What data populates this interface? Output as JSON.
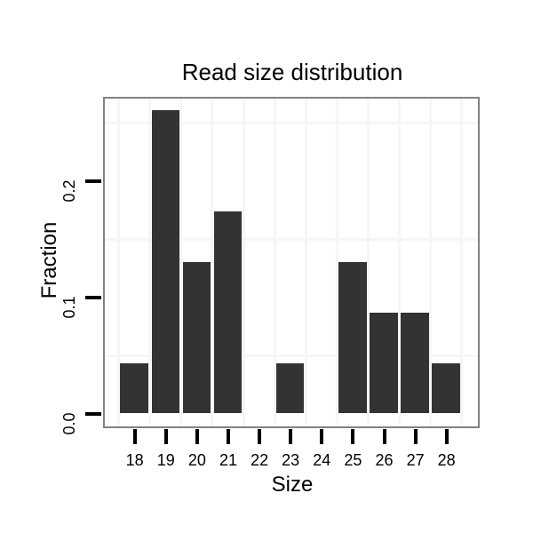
{
  "chart_data": {
    "type": "bar",
    "title": "Read size distribution",
    "xlabel": "Size",
    "ylabel": "Fraction",
    "categories": [
      "18",
      "19",
      "20",
      "21",
      "22",
      "23",
      "24",
      "25",
      "26",
      "27",
      "28"
    ],
    "values": [
      0.0435,
      0.2609,
      0.1304,
      0.1739,
      0,
      0.0435,
      0,
      0.1304,
      0.087,
      0.087,
      0.0435
    ],
    "ylim": [
      -0.013,
      0.273
    ],
    "y_tick_values": [
      0.0,
      0.1,
      0.2
    ],
    "y_tick_labels": [
      "0.0",
      "0.1",
      "0.2"
    ],
    "y_minor_gridlines": [
      0.05,
      0.15,
      0.25
    ],
    "x_minor_gridlines": [
      17.5,
      18.5,
      19.5,
      20.5,
      21.5,
      22.5,
      23.5,
      24.5,
      25.5,
      26.5,
      27.5,
      28.5
    ],
    "grid": "minor-only",
    "legend": "none",
    "colors": {
      "bar": "#333333",
      "panel_border": "#828282",
      "gridline": "#f6f6f6",
      "tick": "#000000",
      "text": "#000000",
      "background": "#ffffff"
    }
  }
}
